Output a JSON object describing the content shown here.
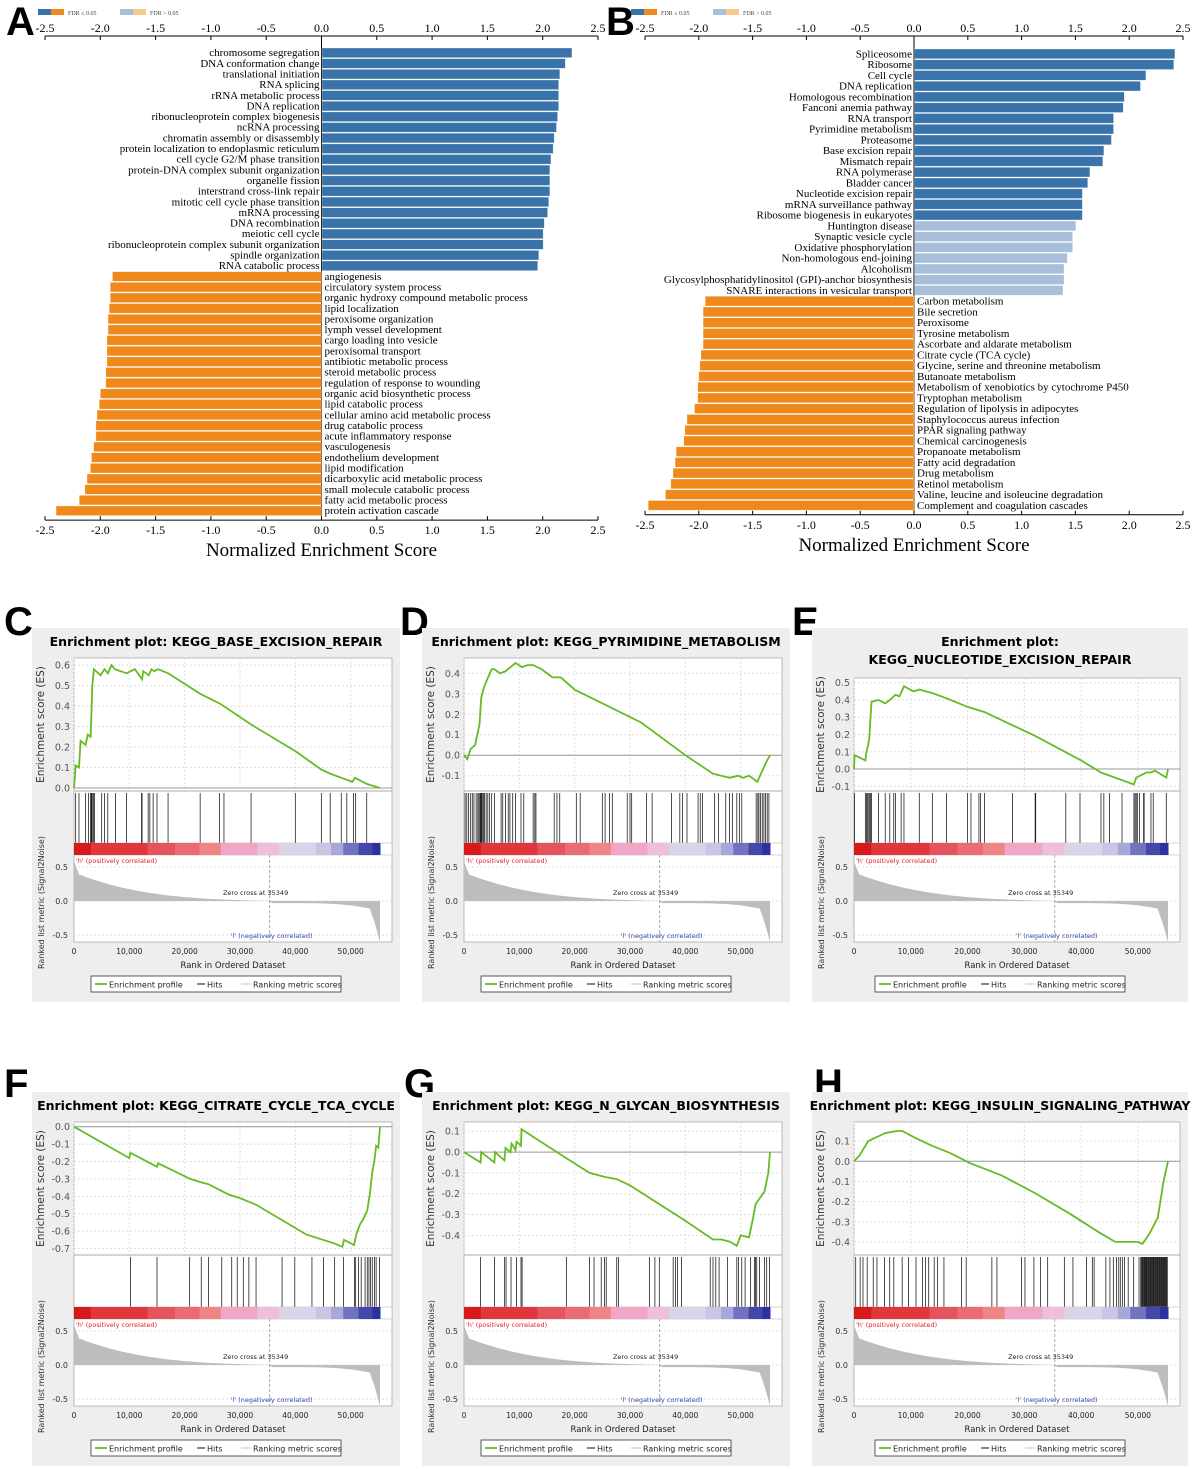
{
  "panels": {
    "A": "A",
    "B": "B",
    "C": "C",
    "D": "D",
    "E": "E",
    "F": "F",
    "G": "G",
    "H": "H"
  },
  "legend": {
    "sig_label": "FDR ≤ 0.05",
    "nonsig_label": "FDR > 0.05"
  },
  "colors": {
    "pos_sig": "#3a73aa",
    "pos_nonsig": "#a8bfdc",
    "neg_sig": "#f0891c",
    "neg_nonsig": "#f7c98a",
    "es_line": "#66bb22"
  },
  "chart_data": [
    {
      "id": "A",
      "type": "bar",
      "orientation": "horizontal",
      "xlabel": "Normalized Enrichment Score",
      "xlim": [
        -2.5,
        2.5
      ],
      "xticks": [
        "-2.5",
        "-2.0",
        "-1.5",
        "-1.0",
        "-0.5",
        "0.0",
        "0.5",
        "1.0",
        "1.5",
        "2.0",
        "2.5"
      ],
      "categories": [
        "chromosome segregation",
        "DNA conformation change",
        "translational initiation",
        "RNA splicing",
        "rRNA metabolic process",
        "DNA replication",
        "ribonucleoprotein complex biogenesis",
        "ncRNA processing",
        "chromatin assembly or disassembly",
        "protein localization to endoplasmic reticulum",
        "cell cycle G2/M phase transition",
        "protein-DNA complex subunit organization",
        "organelle fission",
        "interstrand cross-link repair",
        "mitotic cell cycle phase transition",
        "mRNA processing",
        "DNA recombination",
        "meiotic cell cycle",
        "ribonucleoprotein complex subunit organization",
        "spindle organization",
        "RNA catabolic process",
        "angiogenesis",
        "circulatory system process",
        "organic hydroxy compound metabolic process",
        "lipid localization",
        "peroxisome organization",
        "lymph vessel development",
        "cargo loading into vesicle",
        "peroxisomal transport",
        "antibiotic metabolic process",
        "steroid metabolic process",
        "regulation of response to wounding",
        "organic acid biosynthetic process",
        "lipid catabolic process",
        "cellular amino acid metabolic process",
        "drug catabolic process",
        "acute inflammatory response",
        "vasculogenesis",
        "endothelium development",
        "lipid modification",
        "dicarboxylic acid metabolic process",
        "small molecule catabolic process",
        "fatty acid metabolic process",
        "protein activation cascade"
      ],
      "values": [
        2.26,
        2.2,
        2.15,
        2.14,
        2.14,
        2.14,
        2.13,
        2.12,
        2.1,
        2.09,
        2.07,
        2.06,
        2.06,
        2.06,
        2.05,
        2.04,
        2.01,
        2.0,
        2.0,
        1.96,
        1.95,
        -1.89,
        -1.91,
        -1.91,
        -1.92,
        -1.93,
        -1.93,
        -1.94,
        -1.94,
        -1.94,
        -1.95,
        -1.95,
        -2.0,
        -2.01,
        -2.03,
        -2.04,
        -2.04,
        -2.06,
        -2.08,
        -2.09,
        -2.12,
        -2.14,
        -2.19,
        -2.4
      ],
      "significant": [
        true,
        true,
        true,
        true,
        true,
        true,
        true,
        true,
        true,
        true,
        true,
        true,
        true,
        true,
        true,
        true,
        true,
        true,
        true,
        true,
        true,
        true,
        true,
        true,
        true,
        true,
        true,
        true,
        true,
        true,
        true,
        true,
        true,
        true,
        true,
        true,
        true,
        true,
        true,
        true,
        true,
        true,
        true,
        true
      ]
    },
    {
      "id": "B",
      "type": "bar",
      "orientation": "horizontal",
      "xlabel": "Normalized Enrichment Score",
      "xlim": [
        -2.5,
        2.5
      ],
      "xticks": [
        "-2.5",
        "-2.0",
        "-1.5",
        "-1.0",
        "-0.5",
        "0.0",
        "0.5",
        "1.0",
        "1.5",
        "2.0",
        "2.5"
      ],
      "categories": [
        "Spliceosome",
        "Ribosome",
        "Cell cycle",
        "DNA replication",
        "Homologous recombination",
        "Fanconi anemia pathway",
        "RNA transport",
        "Pyrimidine metabolism",
        "Proteasome",
        "Base excision repair",
        "Mismatch repair",
        "RNA polymerase",
        "Bladder cancer",
        "Nucleotide excision repair",
        "mRNA surveillance pathway",
        "Ribosome biogenesis in eukaryotes",
        "Huntington disease",
        "Synaptic vesicle cycle",
        "Oxidative phosphorylation",
        "Non-homologous end-joining",
        "Alcoholism",
        "Glycosylphosphatidylinositol (GPI)-anchor biosynthesis",
        "SNARE interactions in vesicular transport",
        "Carbon metabolism",
        "Bile secretion",
        "Peroxisome",
        "Tyrosine metabolism",
        "Ascorbate and aldarate metabolism",
        "Citrate cycle (TCA cycle)",
        "Glycine, serine and threonine metabolism",
        "Butanoate metabolism",
        "Metabolism of xenobiotics by cytochrome P450",
        "Tryptophan metabolism",
        "Regulation of lipolysis in adipocytes",
        "Staphylococcus aureus infection",
        "PPAR signaling pathway",
        "Chemical carcinogenesis",
        "Propanoate metabolism",
        "Fatty acid degradation",
        "Drug metabolism",
        "Retinol metabolism",
        "Valine, leucine and isoleucine degradation",
        "Complement and coagulation cascades"
      ],
      "values": [
        2.42,
        2.41,
        2.15,
        2.1,
        1.95,
        1.94,
        1.85,
        1.85,
        1.83,
        1.76,
        1.75,
        1.63,
        1.61,
        1.56,
        1.56,
        1.56,
        1.5,
        1.47,
        1.47,
        1.42,
        1.39,
        1.39,
        1.38,
        -1.94,
        -1.96,
        -1.96,
        -1.96,
        -1.96,
        -1.98,
        -1.99,
        -2.0,
        -2.01,
        -2.01,
        -2.04,
        -2.11,
        -2.13,
        -2.14,
        -2.21,
        -2.22,
        -2.24,
        -2.26,
        -2.31,
        -2.47
      ],
      "significant": [
        true,
        true,
        true,
        true,
        true,
        true,
        true,
        true,
        true,
        true,
        true,
        true,
        true,
        true,
        true,
        true,
        false,
        false,
        false,
        false,
        false,
        false,
        false,
        true,
        true,
        true,
        true,
        true,
        true,
        true,
        true,
        true,
        true,
        true,
        true,
        true,
        true,
        true,
        true,
        true,
        true,
        true,
        true
      ]
    },
    {
      "id": "C",
      "type": "line",
      "title": "Enrichment plot: KEGG_BASE_EXCISION_REPAIR",
      "title_lines": [
        "Enrichment plot: KEGG_BASE_EXCISION_REPAIR"
      ],
      "ylabel": "Enrichment score (ES)",
      "ylim": [
        0.0,
        0.62
      ],
      "yticks": [
        "0.0",
        "0.1",
        "0.2",
        "0.3",
        "0.4",
        "0.5",
        "0.6"
      ],
      "ytick_values": [
        0,
        0.1,
        0.2,
        0.3,
        0.4,
        0.5,
        0.6
      ],
      "es_x": [
        0,
        300,
        900,
        1200,
        2100,
        2500,
        3000,
        3100,
        3300,
        3600,
        4800,
        5500,
        6100,
        6800,
        7400,
        9500,
        11000,
        12300,
        12500,
        13500,
        14000,
        14500,
        15200,
        17000,
        22800,
        26500,
        32000,
        40000,
        44700,
        46300,
        48300,
        49300,
        50300,
        50800,
        52900,
        55300
      ],
      "es_y": [
        0,
        0.11,
        0.1,
        0.23,
        0.21,
        0.26,
        0.25,
        0.33,
        0.5,
        0.58,
        0.55,
        0.58,
        0.56,
        0.6,
        0.58,
        0.56,
        0.58,
        0.53,
        0.57,
        0.55,
        0.58,
        0.57,
        0.58,
        0.56,
        0.46,
        0.41,
        0.31,
        0.18,
        0.09,
        0.07,
        0.05,
        0.04,
        0.03,
        0.05,
        0.02,
        0.0
      ],
      "hits": [
        300,
        900,
        2100,
        2600,
        3000,
        3100,
        3200,
        3300,
        3500,
        3700,
        5000,
        5500,
        6100,
        7500,
        9500,
        12200,
        12300,
        13400,
        13700,
        14300,
        15000,
        17000,
        22800,
        26300,
        27100,
        32000,
        40000,
        44700,
        46300,
        48300,
        49300,
        50500,
        50900,
        52900
      ],
      "xlabel": "Rank in Ordered Dataset",
      "xticks": [
        "0",
        "10,000",
        "20,000",
        "30,000",
        "40,000",
        "50,000"
      ]
    },
    {
      "id": "D",
      "type": "line",
      "title": "Enrichment plot: KEGG_PYRIMIDINE_METABOLISM",
      "title_lines": [
        "Enrichment plot: KEGG_PYRIMIDINE_METABOLISM"
      ],
      "ylabel": "Enrichment score (ES)",
      "ylim": [
        -0.16,
        0.46
      ],
      "yticks": [
        "-0.1",
        "0.0",
        "0.1",
        "0.2",
        "0.3",
        "0.4"
      ],
      "ytick_values": [
        -0.1,
        0,
        0.1,
        0.2,
        0.3,
        0.4
      ],
      "es_x": [
        0,
        600,
        1200,
        2000,
        2800,
        3100,
        3600,
        4200,
        5000,
        5500,
        6500,
        7500,
        9300,
        10500,
        11500,
        12500,
        14000,
        16000,
        17500,
        20000,
        26000,
        32000,
        40000,
        45000,
        48000,
        49500,
        50500,
        51500,
        53000,
        54500,
        55300
      ],
      "es_y": [
        0,
        -0.02,
        0.03,
        0.05,
        0.15,
        0.28,
        0.33,
        0.37,
        0.42,
        0.42,
        0.4,
        0.41,
        0.45,
        0.43,
        0.44,
        0.44,
        0.42,
        0.38,
        0.38,
        0.32,
        0.24,
        0.16,
        0.0,
        -0.09,
        -0.11,
        -0.1,
        -0.11,
        -0.1,
        -0.13,
        -0.04,
        0.0
      ],
      "hits": [
        200,
        500,
        800,
        1200,
        1500,
        1800,
        2200,
        2500,
        2700,
        2900,
        3000,
        3100,
        3200,
        3300,
        3500,
        3700,
        4000,
        4300,
        4600,
        5000,
        5500,
        6700,
        7000,
        7500,
        8000,
        8300,
        8800,
        9300,
        10300,
        10800,
        12500,
        12800,
        13000,
        16300,
        16800,
        17300,
        20300,
        21000,
        25000,
        25500,
        26300,
        26800,
        29500,
        30000,
        30300,
        33000,
        34000,
        37500,
        39000,
        39500,
        40300,
        42300,
        42700,
        43100,
        45300,
        46000,
        47300,
        48000,
        48500,
        49300,
        49800,
        50200,
        52800,
        53100,
        53300,
        53600,
        53900,
        54200,
        54500,
        54800,
        55100
      ]
    },
    {
      "id": "E",
      "type": "line",
      "title": "Enrichment plot: KEGG_NUCLEOTIDE_EXCISION_REPAIR",
      "title_lines": [
        "Enrichment plot:",
        "KEGG_NUCLEOTIDE_EXCISION_REPAIR"
      ],
      "ylabel": "Enrichment score (ES)",
      "ylim": [
        -0.11,
        0.51
      ],
      "yticks": [
        "-0.1",
        "0.0",
        "0.1",
        "0.2",
        "0.3",
        "0.4",
        "0.5"
      ],
      "ytick_values": [
        -0.1,
        0,
        0.1,
        0.2,
        0.3,
        0.4,
        0.5
      ],
      "es_x": [
        0,
        100,
        2000,
        2200,
        2500,
        2700,
        2900,
        3100,
        4300,
        5500,
        6300,
        7300,
        8000,
        8800,
        10500,
        11500,
        13800,
        16300,
        20000,
        23000,
        32000,
        40000,
        43500,
        49300,
        49700,
        50300,
        51500,
        52300,
        53000,
        55000,
        55300
      ],
      "es_y": [
        0,
        0.08,
        0.05,
        0.1,
        0.14,
        0.18,
        0.3,
        0.39,
        0.4,
        0.38,
        0.4,
        0.43,
        0.42,
        0.48,
        0.45,
        0.46,
        0.44,
        0.41,
        0.36,
        0.33,
        0.19,
        0.05,
        -0.02,
        -0.09,
        -0.05,
        -0.04,
        -0.02,
        -0.02,
        -0.01,
        -0.05,
        0.0
      ],
      "hits": [
        100,
        2000,
        2200,
        2400,
        2500,
        2700,
        2900,
        3100,
        4300,
        5500,
        6300,
        7000,
        7300,
        8300,
        8800,
        11500,
        13800,
        16300,
        20000,
        20600,
        22000,
        22300,
        23000,
        27900,
        31900,
        32000,
        37300,
        39800,
        43500,
        44000,
        45000,
        47200,
        49300,
        49500,
        49700,
        49900,
        50300,
        51000,
        51100,
        52300,
        52700,
        55000
      ]
    },
    {
      "id": "F",
      "type": "line",
      "title": "Enrichment plot: KEGG_CITRATE_CYCLE_TCA_CYCLE",
      "title_lines": [
        "Enrichment plot: KEGG_CITRATE_CYCLE_TCA_CYCLE"
      ],
      "ylabel": "Enrichment score (ES)",
      "ylim": [
        -0.72,
        0.01
      ],
      "yticks": [
        "-0.7",
        "-0.6",
        "-0.5",
        "-0.4",
        "-0.3",
        "-0.2",
        "-0.1",
        "0.0"
      ],
      "ytick_values": [
        -0.7,
        -0.6,
        -0.5,
        -0.4,
        -0.3,
        -0.2,
        -0.1,
        0
      ],
      "es_x": [
        0,
        10000,
        10200,
        15000,
        15200,
        21000,
        23000,
        24300,
        26700,
        28000,
        30000,
        33000,
        42000,
        45000,
        47000,
        48500,
        48800,
        50600,
        51000,
        51700,
        52300,
        53000,
        53500,
        53900,
        54300,
        54600,
        55000,
        55300
      ],
      "es_y": [
        0,
        -0.18,
        -0.15,
        -0.23,
        -0.21,
        -0.3,
        -0.32,
        -0.33,
        -0.37,
        -0.39,
        -0.41,
        -0.45,
        -0.62,
        -0.65,
        -0.67,
        -0.69,
        -0.65,
        -0.68,
        -0.62,
        -0.56,
        -0.53,
        -0.48,
        -0.38,
        -0.26,
        -0.19,
        -0.11,
        -0.12,
        0.0
      ],
      "hits": [
        10200,
        15000,
        20900,
        23000,
        24300,
        26700,
        28500,
        29500,
        30600,
        31600,
        32900,
        37600,
        39900,
        43000,
        45100,
        47100,
        48700,
        50700,
        50900,
        51400,
        51900,
        52600,
        53000,
        53300,
        53600,
        53900,
        54300,
        54600,
        55200
      ]
    },
    {
      "id": "G",
      "type": "line",
      "title": "Enrichment plot: KEGG_N_GLYCAN_BIOSYNTHESIS",
      "title_lines": [
        "Enrichment plot: KEGG_N_GLYCAN_BIOSYNTHESIS"
      ],
      "ylabel": "Enrichment score (ES)",
      "ylim": [
        -0.48,
        0.13
      ],
      "yticks": [
        "-0.4",
        "-0.3",
        "-0.2",
        "-0.1",
        "0.0",
        "0.1"
      ],
      "ytick_values": [
        -0.4,
        -0.3,
        -0.2,
        -0.1,
        0,
        0.1
      ],
      "es_x": [
        0,
        3000,
        3100,
        5500,
        5600,
        7300,
        7500,
        8400,
        8600,
        9300,
        9500,
        10300,
        10400,
        18500,
        22700,
        25500,
        27600,
        30000,
        40000,
        45000,
        46500,
        48000,
        49300,
        50000,
        51500,
        52300,
        52700,
        53500,
        54300,
        55000,
        55300
      ],
      "es_y": [
        0,
        -0.05,
        0,
        -0.05,
        0,
        -0.04,
        0.02,
        0,
        0.04,
        0.01,
        0.05,
        0.03,
        0.11,
        -0.03,
        -0.1,
        -0.12,
        -0.13,
        -0.16,
        -0.33,
        -0.42,
        -0.42,
        -0.43,
        -0.45,
        -0.4,
        -0.41,
        -0.31,
        -0.25,
        -0.22,
        -0.19,
        -0.1,
        0.0
      ],
      "hits": [
        3000,
        5500,
        7300,
        7600,
        8500,
        9500,
        10300,
        10500,
        18500,
        22700,
        23500,
        24800,
        25400,
        25700,
        27600,
        27900,
        33500,
        34500,
        35300,
        37800,
        38200,
        38600,
        39300,
        44500,
        45000,
        45500,
        46100,
        47600,
        49300,
        49600,
        50200,
        50800,
        51800,
        52500,
        52700,
        52900,
        53400,
        54300,
        54700,
        55200
      ]
    },
    {
      "id": "H",
      "type": "line",
      "title": "Enrichment plot: KEGG_INSULIN_SIGNALING_PATHWAY",
      "title_lines": [
        "Enrichment plot: KEGG_INSULIN_SIGNALING_PATHWAY"
      ],
      "ylabel": "Enrichment score (ES)",
      "ylim": [
        -0.45,
        0.18
      ],
      "yticks": [
        "-0.4",
        "-0.3",
        "-0.2",
        "-0.1",
        "0.0",
        "0.1"
      ],
      "ytick_values": [
        -0.4,
        -0.3,
        -0.2,
        -0.1,
        0,
        0.1
      ],
      "es_x": [
        0,
        1000,
        2500,
        4000,
        5500,
        7500,
        8500,
        10500,
        13500,
        17000,
        20500,
        26000,
        32000,
        38000,
        43000,
        46000,
        48000,
        50000,
        50800,
        52000,
        53500,
        54500,
        55300
      ],
      "es_y": [
        0,
        0.03,
        0.1,
        0.12,
        0.14,
        0.15,
        0.15,
        0.12,
        0.08,
        0.04,
        -0.01,
        -0.07,
        -0.16,
        -0.26,
        -0.35,
        -0.4,
        -0.4,
        -0.4,
        -0.41,
        -0.36,
        -0.28,
        -0.1,
        0.0
      ],
      "hits": "dense"
    }
  ],
  "gsea_common": {
    "rank_xlabel": "Rank in Ordered Dataset",
    "rank_ylabel": "Ranked list metric (Signal2Noise)",
    "xlim": [
      0,
      55300
    ],
    "xticks": [
      "0",
      "10,000",
      "20,000",
      "30,000",
      "40,000",
      "50,000"
    ],
    "xtick_values": [
      0,
      10000,
      20000,
      30000,
      40000,
      50000
    ],
    "metric_yticks": [
      "0.5",
      "0.0",
      "-0.5"
    ],
    "metric_ytick_values": [
      0.5,
      0,
      -0.5
    ],
    "pos_label": "'h' (positively correlated)",
    "neg_label": "'l' (negatively correlated)",
    "zero_cross_label": "Zero cross at 35349",
    "zero_cross": 35349,
    "legend_items": [
      "Enrichment profile",
      "Hits",
      "Ranking metric scores"
    ]
  }
}
